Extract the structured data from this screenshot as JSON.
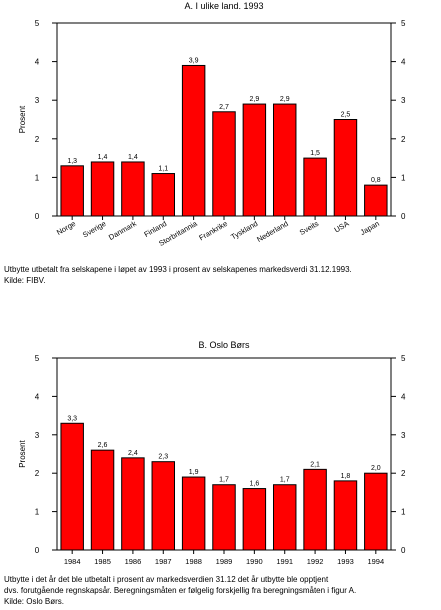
{
  "chart_data": [
    {
      "type": "bar",
      "title": "A. I ulike land. 1993",
      "ylabel": "Prosent",
      "xlabel": "",
      "ylim": [
        0,
        5
      ],
      "yticks": [
        0,
        1,
        2,
        3,
        4,
        5
      ],
      "categories": [
        "Norge",
        "Sverige",
        "Danmark",
        "Finland",
        "Storbritannia",
        "Frankrike",
        "Tyskland",
        "Nederland",
        "Sveits",
        "USA",
        "Japan"
      ],
      "values": [
        1.3,
        1.4,
        1.4,
        1.1,
        3.9,
        2.7,
        2.9,
        2.9,
        1.5,
        2.5,
        0.8
      ],
      "value_labels": [
        "1,3",
        "1,4",
        "1,4",
        "1,1",
        "3,9",
        "2,7",
        "2,9",
        "2,9",
        "1,5",
        "2,5",
        "0,8"
      ],
      "bar_color": "#ff0000",
      "grid": false,
      "note": "Utbytte utbetalt fra selskapene i løpet av 1993 i prosent av selskapenes markedsverdi 31.12.1993.\nKilde: FIBV."
    },
    {
      "type": "bar",
      "title": "B. Oslo Børs",
      "ylabel": "Prosent",
      "xlabel": "",
      "ylim": [
        0,
        5
      ],
      "yticks": [
        0,
        1,
        2,
        3,
        4,
        5
      ],
      "categories": [
        "1984",
        "1985",
        "1986",
        "1987",
        "1988",
        "1989",
        "1990",
        "1991",
        "1992",
        "1993",
        "1994"
      ],
      "values": [
        3.3,
        2.6,
        2.4,
        2.3,
        1.9,
        1.7,
        1.6,
        1.7,
        2.1,
        1.8,
        2.0
      ],
      "value_labels": [
        "3,3",
        "2,6",
        "2,4",
        "2,3",
        "1,9",
        "1,7",
        "1,6",
        "1,7",
        "2,1",
        "1,8",
        "2,0"
      ],
      "bar_color": "#ff0000",
      "grid": false,
      "note": "Utbytte i det år det ble utbetalt i prosent av markedsverdien 31.12 det år utbytte ble opptjent\ndvs. forutgående regnskapsår. Beregningsmåten er følgelig forskjellig fra beregningsmåten i figur A.\nKilde: Oslo Børs."
    }
  ]
}
